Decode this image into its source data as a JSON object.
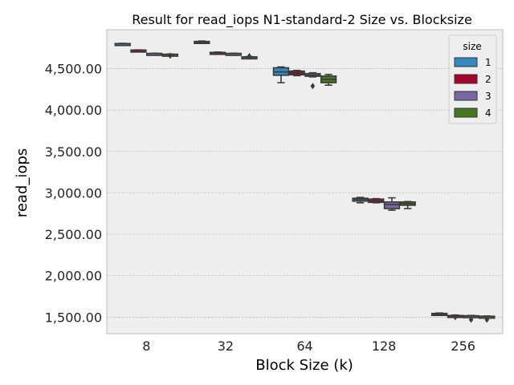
{
  "chart_data": {
    "type": "boxplot",
    "title": "Result for read_iops N1-standard-2 Size vs. Blocksize",
    "xlabel": "Block Size (k)",
    "ylabel": "read_iops",
    "categories": [
      "8",
      "32",
      "64",
      "128",
      "256"
    ],
    "ylim": [
      1300,
      4970
    ],
    "yticks": [
      1500,
      2000,
      2500,
      3000,
      3500,
      4000,
      4500
    ],
    "ytick_labels": [
      "1,500.00",
      "2,000.00",
      "2,500.00",
      "3,000.00",
      "3,500.00",
      "4,000.00",
      "4,500.00"
    ],
    "grid": true,
    "legend": {
      "title": "size",
      "position": "top-right",
      "items": [
        {
          "label": "1",
          "color": "#348ABD"
        },
        {
          "label": "2",
          "color": "#A60628"
        },
        {
          "label": "3",
          "color": "#7A68A6"
        },
        {
          "label": "4",
          "color": "#467821"
        }
      ]
    },
    "series": [
      {
        "name": "1",
        "color": "#348ABD",
        "boxes": [
          {
            "whislo": 4795,
            "q1": 4797,
            "med": 4800,
            "q3": 4803,
            "whishi": 4805,
            "fliers": []
          },
          {
            "whislo": 4805,
            "q1": 4810,
            "med": 4818,
            "q3": 4828,
            "whishi": 4833,
            "fliers": []
          },
          {
            "whislo": 4330,
            "q1": 4420,
            "med": 4460,
            "q3": 4510,
            "whishi": 4520,
            "fliers": []
          },
          {
            "whislo": 2880,
            "q1": 2900,
            "med": 2920,
            "q3": 2935,
            "whishi": 2945,
            "fliers": []
          },
          {
            "whislo": 1520,
            "q1": 1527,
            "med": 1535,
            "q3": 1545,
            "whishi": 1550,
            "fliers": []
          }
        ]
      },
      {
        "name": "2",
        "color": "#A60628",
        "boxes": [
          {
            "whislo": 4718,
            "q1": 4720,
            "med": 4722,
            "q3": 4724,
            "whishi": 4726,
            "fliers": []
          },
          {
            "whislo": 4678,
            "q1": 4682,
            "med": 4690,
            "q3": 4696,
            "whishi": 4700,
            "fliers": []
          },
          {
            "whislo": 4415,
            "q1": 4425,
            "med": 4445,
            "q3": 4470,
            "whishi": 4478,
            "fliers": []
          },
          {
            "whislo": 2880,
            "q1": 2885,
            "med": 2905,
            "q3": 2925,
            "whishi": 2930,
            "fliers": []
          },
          {
            "whislo": 1505,
            "q1": 1508,
            "med": 1515,
            "q3": 1520,
            "whishi": 1525,
            "fliers": [
              1500
            ]
          }
        ]
      },
      {
        "name": "3",
        "color": "#7A68A6",
        "boxes": [
          {
            "whislo": 4678,
            "q1": 4680,
            "med": 4682,
            "q3": 4684,
            "whishi": 4686,
            "fliers": []
          },
          {
            "whislo": 4678,
            "q1": 4680,
            "med": 4682,
            "q3": 4684,
            "whishi": 4686,
            "fliers": []
          },
          {
            "whislo": 4400,
            "q1": 4408,
            "med": 4420,
            "q3": 4440,
            "whishi": 4450,
            "fliers": [
              4290
            ]
          },
          {
            "whislo": 2790,
            "q1": 2810,
            "med": 2860,
            "q3": 2890,
            "whishi": 2940,
            "fliers": []
          },
          {
            "whislo": 1510,
            "q1": 1512,
            "med": 1514,
            "q3": 1517,
            "whishi": 1520,
            "fliers": [
              1470
            ]
          }
        ]
      },
      {
        "name": "4",
        "color": "#467821",
        "boxes": [
          {
            "whislo": 4668,
            "q1": 4670,
            "med": 4672,
            "q3": 4674,
            "whishi": 4676,
            "fliers": [
              4655
            ]
          },
          {
            "whislo": 4635,
            "q1": 4638,
            "med": 4640,
            "q3": 4642,
            "whishi": 4645,
            "fliers": [
              4650
            ]
          },
          {
            "whislo": 4300,
            "q1": 4330,
            "med": 4370,
            "q3": 4410,
            "whishi": 4430,
            "fliers": []
          },
          {
            "whislo": 2810,
            "q1": 2850,
            "med": 2870,
            "q3": 2890,
            "whishi": 2895,
            "fliers": []
          },
          {
            "whislo": 1505,
            "q1": 1507,
            "med": 1509,
            "q3": 1511,
            "whishi": 1513,
            "fliers": [
              1470
            ]
          }
        ]
      }
    ]
  }
}
